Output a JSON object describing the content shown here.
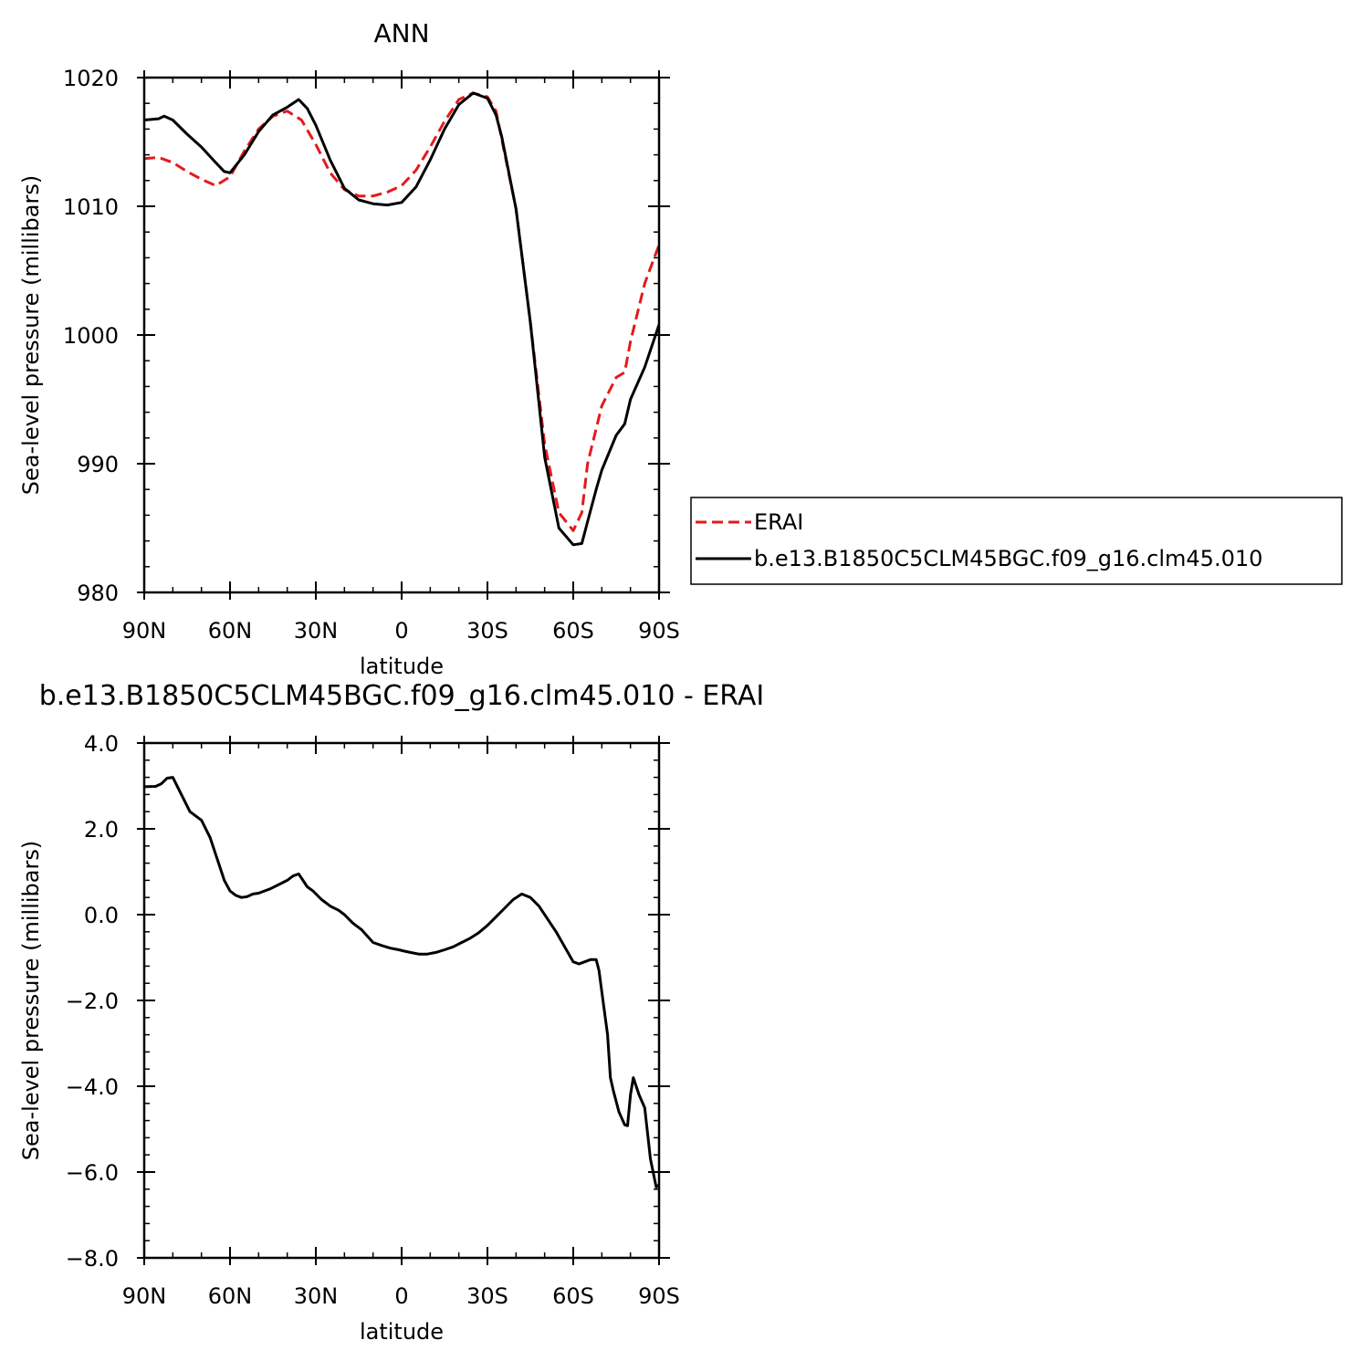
{
  "chart_data": [
    {
      "type": "line",
      "title": "ANN",
      "xlabel": "latitude",
      "ylabel": "Sea-level pressure (millibars)",
      "x_ticks": [
        {
          "value": 90,
          "label": "90N"
        },
        {
          "value": 60,
          "label": "60N"
        },
        {
          "value": 30,
          "label": "30N"
        },
        {
          "value": 0,
          "label": "0"
        },
        {
          "value": -30,
          "label": "30S"
        },
        {
          "value": -60,
          "label": "60S"
        },
        {
          "value": -90,
          "label": "90S"
        }
      ],
      "y_ticks": [
        {
          "value": 980,
          "label": "980"
        },
        {
          "value": 990,
          "label": "990"
        },
        {
          "value": 1000,
          "label": "1000"
        },
        {
          "value": 1010,
          "label": "1010"
        },
        {
          "value": 1020,
          "label": "1020"
        }
      ],
      "xlim": [
        90,
        -90
      ],
      "ylim": [
        980,
        1020
      ],
      "grid": false,
      "legend_position": "right",
      "series": [
        {
          "name": "ERAI",
          "color": "#e41a1c",
          "dash": "dashed",
          "x": [
            90,
            85,
            80,
            75,
            70,
            65,
            60,
            55,
            50,
            45,
            40,
            35,
            30,
            25,
            20,
            15,
            10,
            5,
            0,
            -5,
            -10,
            -15,
            -20,
            -25,
            -30,
            -33,
            -35,
            -40,
            -45,
            -50,
            -55,
            -60,
            -63,
            -65,
            -70,
            -75,
            -78,
            -80,
            -85,
            -90
          ],
          "y": [
            1013.7,
            1013.8,
            1013.4,
            1012.7,
            1012.1,
            1011.6,
            1012.3,
            1014.3,
            1016.0,
            1017.0,
            1017.4,
            1016.7,
            1014.8,
            1012.6,
            1011.3,
            1010.8,
            1010.8,
            1011.1,
            1011.6,
            1012.8,
            1014.6,
            1016.6,
            1018.3,
            1018.8,
            1018.5,
            1017.4,
            1015.2,
            1009.8,
            1001.0,
            991.5,
            986.2,
            984.8,
            986.2,
            990.0,
            994.5,
            996.7,
            997.1,
            999.5,
            1004.0,
            1007.0
          ],
          "x_dense": [
            90,
            85,
            80,
            75,
            70,
            65,
            60,
            55,
            50,
            45,
            40,
            35,
            30,
            25,
            20,
            15,
            10,
            5,
            0,
            -5,
            -10,
            -15,
            -20,
            -25,
            -30,
            -35,
            -40,
            -45,
            -50,
            -55,
            -60,
            -63,
            -65,
            -70,
            -75,
            -78,
            -80,
            -85,
            -90
          ]
        },
        {
          "name": "b.e13.B1850C5CLM45BGC.f09_g16.clm45.010",
          "color": "#000000",
          "dash": "solid",
          "x": [
            90,
            85,
            83,
            80,
            75,
            70,
            65,
            62,
            60,
            55,
            50,
            45,
            40,
            36,
            33,
            30,
            25,
            20,
            15,
            10,
            5,
            0,
            -5,
            -10,
            -15,
            -20,
            -25,
            -30,
            -33,
            -35,
            -40,
            -45,
            -50,
            -55,
            -60,
            -63,
            -65,
            -68,
            -70,
            -75,
            -78,
            -80,
            -85,
            -90
          ],
          "y": [
            1016.7,
            1016.8,
            1017.0,
            1016.7,
            1015.6,
            1014.6,
            1013.4,
            1012.7,
            1012.6,
            1014.0,
            1015.8,
            1017.1,
            1017.7,
            1018.3,
            1017.6,
            1016.3,
            1013.6,
            1011.4,
            1010.5,
            1010.2,
            1010.1,
            1010.3,
            1011.5,
            1013.6,
            1016.0,
            1017.9,
            1018.8,
            1018.4,
            1017.1,
            1015.4,
            1009.8,
            1001.0,
            990.5,
            985.0,
            983.7,
            983.8,
            985.5,
            988.0,
            989.5,
            992.2,
            993.1,
            995.0,
            997.5,
            1000.8
          ]
        }
      ]
    },
    {
      "type": "line",
      "title": "b.e13.B1850C5CLM45BGC.f09_g16.clm45.010 - ERAI",
      "xlabel": "latitude",
      "ylabel": "Sea-level pressure (millibars)",
      "x_ticks": [
        {
          "value": 90,
          "label": "90N"
        },
        {
          "value": 60,
          "label": "60N"
        },
        {
          "value": 30,
          "label": "30N"
        },
        {
          "value": 0,
          "label": "0"
        },
        {
          "value": -30,
          "label": "30S"
        },
        {
          "value": -60,
          "label": "60S"
        },
        {
          "value": -90,
          "label": "90S"
        }
      ],
      "y_ticks": [
        {
          "value": -8,
          "label": "-8.0"
        },
        {
          "value": -6,
          "label": "-6.0"
        },
        {
          "value": -4,
          "label": "-4.0"
        },
        {
          "value": -2,
          "label": "-2.0"
        },
        {
          "value": 0,
          "label": "0.0"
        },
        {
          "value": 2,
          "label": "2.0"
        },
        {
          "value": 4,
          "label": "4.0"
        }
      ],
      "xlim": [
        90,
        -90
      ],
      "ylim": [
        -8,
        4
      ],
      "grid": false,
      "series": [
        {
          "color": "#000000",
          "dash": "solid",
          "x": [
            90,
            86,
            84,
            82,
            80,
            77,
            74,
            70,
            67,
            64,
            62,
            60,
            58,
            56,
            54,
            52,
            50,
            48,
            46,
            43,
            40,
            38,
            36,
            35,
            33,
            31,
            28,
            25,
            22,
            20,
            17,
            14,
            12,
            10,
            7,
            4,
            1,
            -1,
            -3,
            -6,
            -9,
            -12,
            -15,
            -18,
            -21,
            -24,
            -27,
            -30,
            -33,
            -36,
            -39,
            -42,
            -45,
            -48,
            -51,
            -54,
            -57,
            -60,
            -62,
            -64,
            -66,
            -68,
            -69,
            -70,
            -72,
            -73,
            -74,
            -76,
            -78,
            -79,
            -80,
            -81,
            -83,
            -85,
            -87,
            -89,
            -90
          ],
          "y": [
            2.98,
            2.99,
            3.05,
            3.18,
            3.2,
            2.8,
            2.4,
            2.2,
            1.8,
            1.2,
            0.8,
            0.55,
            0.45,
            0.4,
            0.42,
            0.48,
            0.5,
            0.55,
            0.6,
            0.7,
            0.8,
            0.9,
            0.95,
            0.85,
            0.65,
            0.55,
            0.35,
            0.2,
            0.1,
            0.0,
            -0.2,
            -0.35,
            -0.5,
            -0.65,
            -0.72,
            -0.78,
            -0.82,
            -0.85,
            -0.88,
            -0.92,
            -0.92,
            -0.88,
            -0.82,
            -0.75,
            -0.65,
            -0.55,
            -0.42,
            -0.25,
            -0.05,
            0.15,
            0.35,
            0.48,
            0.4,
            0.2,
            -0.1,
            -0.4,
            -0.75,
            -1.1,
            -1.15,
            -1.1,
            -1.05,
            -1.05,
            -1.3,
            -1.8,
            -2.8,
            -3.8,
            -4.1,
            -4.6,
            -4.9,
            -4.92,
            -4.2,
            -3.8,
            -4.2,
            -4.5,
            -5.7,
            -6.35,
            -6.3
          ]
        }
      ]
    }
  ],
  "legend": {
    "items": [
      {
        "label": "ERAI",
        "color": "#e41a1c",
        "dash": "dashed"
      },
      {
        "label": "b.e13.B1850C5CLM45BGC.f09_g16.clm45.010",
        "color": "#000000",
        "dash": "solid"
      }
    ]
  }
}
